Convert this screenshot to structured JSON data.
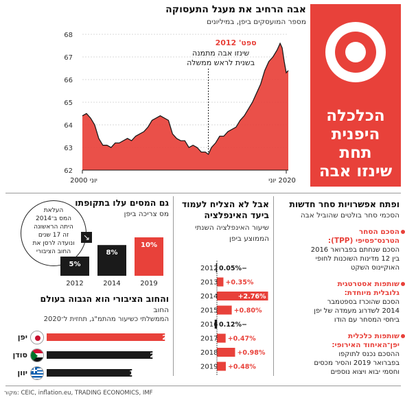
{
  "title_block": {
    "lines": [
      "הכלכלה",
      "היפנית תחת",
      "שינזו אבה"
    ]
  },
  "employment_chart": {
    "title": "אבה הרחיב את מעגל התעסוקה",
    "subtitle": "מספר המועסקים ביפן, במיליונים",
    "annotation_head": "ספט' 2012",
    "annotation_line1": "שינזו אבה מתמנה",
    "annotation_line2": "בשנית לראש ממשלה",
    "x_tick_left": "יוני 2000",
    "x_tick_right": "2020 יוני",
    "accent": "#e8413a"
  },
  "tax_chart": {
    "title": "גם המסים עלו בתקופתו",
    "subtitle": "מס צריכה ביפן",
    "callout": [
      "העלאת",
      "המס ב־2014",
      "היתה הראשונה",
      "זה 17 שנים",
      "ונועדה לרסן את",
      "החוב הציבורי"
    ]
  },
  "debt_chart": {
    "title": "והחוב הציבורי הוא הגבוה בעולם",
    "subtitle_line1": "החוב",
    "subtitle_line2": "הממשלתי כשיעור מהתמ\"ג, תחזית ל־2020"
  },
  "inflation_chart": {
    "title_line1": "אבל לא הצליח לעמוד",
    "title_line2": "ביעד האינפלציה",
    "subtitle_line1": "שיעור האינפלציה השנתי",
    "subtitle_line2": "הממוצע ביפן"
  },
  "trade": {
    "title": "ופתח אפשרויות סחר חדשות",
    "subtitle": "הסכמי סחר בולטים שהוביל אבה",
    "items": [
      {
        "hdr1": "הסכם הסחר",
        "hdr2": "הטרנס־פסיפי (TPP):",
        "t1": "הסכם שנחתם בפברואר 2016",
        "t2": "בין 12 מדינות השוכנות לחופי",
        "t3": "האוקיינוס השקט"
      },
      {
        "hdr1": "שותפות אסטרטגית",
        "hdr2": "גלובלית מיוחדת:",
        "t1": "הסכם שהוכרז בספטמבר",
        "t2": "2014 לשדרוג מעמדה של יפן",
        "t3": "ביחסי המסחר עם הודו"
      },
      {
        "hdr1": "שותפות כלכלית",
        "hdr2": "יפן־האיחוד האירופי:",
        "t1": "ההסכם נכנס לתוקפו",
        "t2": "בפברואר 2019 והסיר מכסים",
        "t3": "וחסמי יבוא ויצוא נוספים"
      }
    ]
  },
  "source": "מקור: CEIC, inflation.eu, TRADING ECONOMICS, IMF",
  "chart_data": [
    {
      "type": "area",
      "title": "אבה הרחיב את מעגל התעסוקה",
      "subtitle": "מספר המועסקים ביפן, במיליונים",
      "ylim": [
        62,
        68
      ],
      "yticks": [
        62,
        63,
        64,
        65,
        66,
        67,
        68
      ],
      "x_start": "2000-06",
      "x_end": "2020-06",
      "x": [
        2000.4,
        2000.8,
        2001.2,
        2001.6,
        2002.0,
        2002.4,
        2002.8,
        2003.2,
        2003.6,
        2004.0,
        2004.4,
        2004.8,
        2005.2,
        2005.6,
        2006.0,
        2006.4,
        2006.8,
        2007.2,
        2007.6,
        2008.0,
        2008.4,
        2008.8,
        2009.2,
        2009.6,
        2010.0,
        2010.4,
        2010.8,
        2011.2,
        2011.6,
        2012.0,
        2012.4,
        2012.7,
        2013.0,
        2013.4,
        2013.8,
        2014.2,
        2014.6,
        2015.0,
        2015.4,
        2015.8,
        2016.2,
        2016.6,
        2017.0,
        2017.4,
        2017.8,
        2018.2,
        2018.6,
        2019.0,
        2019.4,
        2019.7,
        2019.9,
        2020.1,
        2020.3,
        2020.5
      ],
      "y": [
        64.4,
        64.5,
        64.3,
        64.0,
        63.4,
        63.1,
        63.1,
        63.0,
        63.2,
        63.2,
        63.3,
        63.4,
        63.3,
        63.5,
        63.6,
        63.7,
        63.9,
        64.2,
        64.3,
        64.4,
        64.3,
        64.2,
        63.6,
        63.4,
        63.3,
        63.3,
        63.0,
        63.1,
        63.0,
        62.8,
        62.8,
        62.7,
        63.0,
        63.2,
        63.5,
        63.5,
        63.7,
        63.8,
        63.9,
        64.2,
        64.4,
        64.7,
        65.0,
        65.4,
        65.8,
        66.4,
        66.8,
        67.0,
        67.3,
        67.6,
        67.4,
        66.8,
        66.3,
        66.4
      ],
      "annotation": {
        "x": 2012.7,
        "text": [
          "ספט' 2012",
          "שינזו אבה מתמנה",
          "בשנית לראש ממשלה"
        ]
      }
    },
    {
      "type": "bar",
      "title": "גם המסים עלו בתקופתו",
      "subtitle": "מס צריכה ביפן",
      "categories": [
        "2012",
        "2014",
        "2019"
      ],
      "values": [
        5,
        8,
        10
      ],
      "labels": [
        "5%",
        "8%",
        "10%"
      ],
      "colors": [
        "#1a1a1a",
        "#1a1a1a",
        "#e8413a"
      ],
      "ylim": [
        0,
        10
      ]
    },
    {
      "type": "bar",
      "orientation": "horizontal",
      "title": "והחוב הציבורי הוא הגבוה בעולם",
      "categories": [
        "יפן",
        "סודן",
        "יוון"
      ],
      "values": [
        237.6,
        212.8,
        171.4
      ],
      "labels": [
        "237.6%",
        "212.8%",
        "171.4%"
      ],
      "colors": [
        "#e8413a",
        "#1a1a1a",
        "#1a1a1a"
      ],
      "xlim": [
        0,
        240
      ]
    },
    {
      "type": "bar",
      "orientation": "horizontal",
      "title": "אבל לא הצליח לעמוד ביעד האינפלציה",
      "subtitle": "שיעור האינפלציה השנתי הממוצע ביפן",
      "categories": [
        "2012",
        "2013",
        "2014",
        "2015",
        "2016",
        "2017",
        "2018",
        "2019"
      ],
      "values": [
        -0.05,
        0.35,
        2.76,
        0.8,
        -0.12,
        0.47,
        0.98,
        0.48
      ],
      "labels": [
        "0.05%−",
        "+0.35%",
        "+2.76%",
        "+0.80%",
        "0.12%−",
        "+0.47%",
        "+0.98%",
        "+0.48%"
      ],
      "colors": {
        "positive": "#e8413a",
        "negative": "#1a1a1a"
      },
      "xlim": [
        -0.2,
        2.8
      ]
    }
  ]
}
